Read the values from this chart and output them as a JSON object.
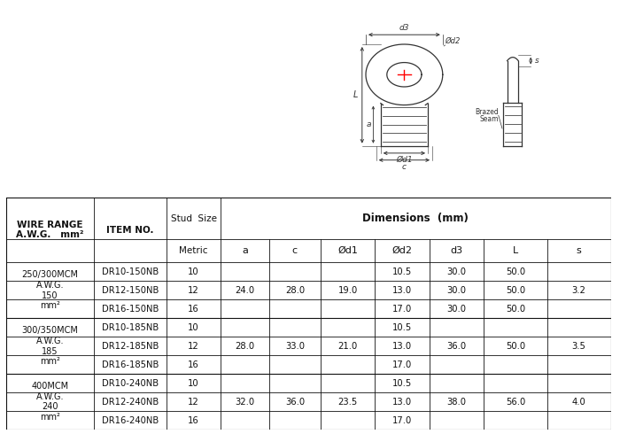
{
  "bg_color": "#ffffff",
  "line_color": "#333333",
  "table": {
    "groups": [
      {
        "wire_range": "250/300MCM\nA.W.G.\n150\nmm²",
        "rows": [
          [
            "DR10-150NB",
            "10",
            "",
            "",
            "",
            "10.5",
            "30.0",
            "50.0",
            ""
          ],
          [
            "DR12-150NB",
            "12",
            "24.0",
            "28.0",
            "19.0",
            "13.0",
            "30.0",
            "50.0",
            "3.2"
          ],
          [
            "DR16-150NB",
            "16",
            "",
            "",
            "",
            "17.0",
            "30.0",
            "50.0",
            ""
          ]
        ]
      },
      {
        "wire_range": "300/350MCM\nA.W.G.\n185\nmm²",
        "rows": [
          [
            "DR10-185NB",
            "10",
            "",
            "",
            "",
            "10.5",
            "",
            "",
            ""
          ],
          [
            "DR12-185NB",
            "12",
            "28.0",
            "33.0",
            "21.0",
            "13.0",
            "36.0",
            "50.0",
            "3.5"
          ],
          [
            "DR16-185NB",
            "16",
            "",
            "",
            "",
            "17.0",
            "",
            "",
            ""
          ]
        ]
      },
      {
        "wire_range": "400MCM\nA.W.G.\n240\nmm²",
        "rows": [
          [
            "DR10-240NB",
            "10",
            "",
            "",
            "",
            "10.5",
            "",
            "",
            ""
          ],
          [
            "DR12-240NB",
            "12",
            "32.0",
            "36.0",
            "23.5",
            "13.0",
            "38.0",
            "56.0",
            "4.0"
          ],
          [
            "DR16-240NB",
            "16",
            "",
            "",
            "",
            "17.0",
            "",
            "",
            ""
          ]
        ]
      }
    ]
  }
}
